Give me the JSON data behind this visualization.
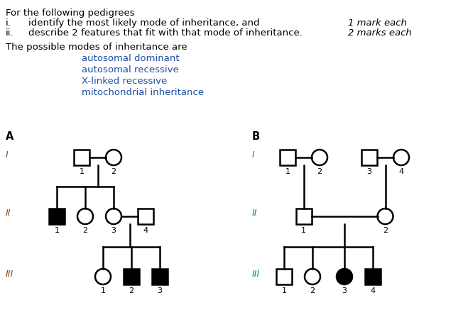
{
  "title_text": "For the following pedigrees",
  "line1_i": "i.",
  "line1_text": "identify the most likely mode of inheritance, and",
  "line2_i": "ii.",
  "line2_text": "describe 2 features that fit with that mode of inheritance.",
  "mark1": "1 mark each",
  "mark2": "2 marks each",
  "modes_header": "The possible modes of inheritance are",
  "modes": [
    "autosomal dominant",
    "autosomal recessive",
    "X-linked recessive",
    "mitochondrial inheritance"
  ],
  "label_A": "A",
  "label_B": "B",
  "roman_I": "I",
  "roman_II": "II",
  "roman_III": "III",
  "bg_color": "#ffffff",
  "text_color": "#000000",
  "blue_color": "#1E4DA1",
  "roman_brown": "#8B4513",
  "roman_teal": "#008B8B",
  "modes_color": "#1E4DA1",
  "line_color": "#000000",
  "sq_size": 0.22,
  "lw": 1.8
}
